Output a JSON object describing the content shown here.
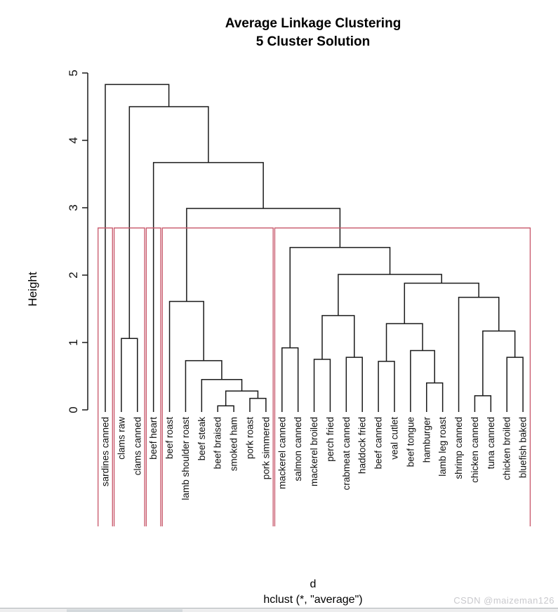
{
  "watermark": "CSDN @maizeman126",
  "chart_data": {
    "type": "dendrogram",
    "title": "Average Linkage Clustering",
    "subtitle": "5 Cluster Solution",
    "ylabel": "Height",
    "xlabel": "d",
    "caption": "hclust (*, \"average\")",
    "ylim": [
      0,
      5
    ],
    "y_ticks": [
      0,
      1,
      2,
      3,
      4,
      5
    ],
    "grid": false,
    "num_clusters": 5,
    "cluster_cut_height": 2.7,
    "cluster_box_color": "#c75568",
    "line_color": "#1a1a1a",
    "leaves": [
      "sardines canned",
      "clams raw",
      "clams canned",
      "beef heart",
      "beef roast",
      "lamb shoulder roast",
      "beef steak",
      "beef braised",
      "smoked ham",
      "pork roast",
      "pork simmered",
      "mackerel canned",
      "salmon canned",
      "mackerel broiled",
      "perch fried",
      "crabmeat canned",
      "haddock fried",
      "beef canned",
      "veal cutlet",
      "beef tongue",
      "hamburger",
      "lamb leg roast",
      "shrimp canned",
      "chicken canned",
      "tuna canned",
      "chicken broiled",
      "bluefish baked"
    ],
    "merges": [
      {
        "a": "L7",
        "b": "L8",
        "h": 0.06
      },
      {
        "a": "L9",
        "b": "L10",
        "h": 0.17
      },
      {
        "a": "N0",
        "b": "N1",
        "h": 0.28
      },
      {
        "a": "L6",
        "b": "N2",
        "h": 0.45
      },
      {
        "a": "L5",
        "b": "N3",
        "h": 0.73
      },
      {
        "a": "L4",
        "b": "N4",
        "h": 1.61
      },
      {
        "a": "L1",
        "b": "L2",
        "h": 1.06
      },
      {
        "a": "L11",
        "b": "L12",
        "h": 0.92
      },
      {
        "a": "L13",
        "b": "L14",
        "h": 0.75
      },
      {
        "a": "L15",
        "b": "L16",
        "h": 0.78
      },
      {
        "a": "N8",
        "b": "N9",
        "h": 1.4
      },
      {
        "a": "L17",
        "b": "L18",
        "h": 0.72
      },
      {
        "a": "L20",
        "b": "L21",
        "h": 0.4
      },
      {
        "a": "L19",
        "b": "N12",
        "h": 0.88
      },
      {
        "a": "N11",
        "b": "N13",
        "h": 1.28
      },
      {
        "a": "L23",
        "b": "L24",
        "h": 0.21
      },
      {
        "a": "L25",
        "b": "L26",
        "h": 0.78
      },
      {
        "a": "N15",
        "b": "N16",
        "h": 1.17
      },
      {
        "a": "L22",
        "b": "N17",
        "h": 1.67
      },
      {
        "a": "N14",
        "b": "N18",
        "h": 1.88
      },
      {
        "a": "N10",
        "b": "N19",
        "h": 2.01
      },
      {
        "a": "N7",
        "b": "N20",
        "h": 2.41
      },
      {
        "a": "N5",
        "b": "N21",
        "h": 2.99
      },
      {
        "a": "L3",
        "b": "N22",
        "h": 3.67
      },
      {
        "a": "N6",
        "b": "N23",
        "h": 4.5
      },
      {
        "a": "L0",
        "b": "N24",
        "h": 4.83
      }
    ],
    "clusters": [
      {
        "from": 0,
        "to": 0
      },
      {
        "from": 1,
        "to": 2
      },
      {
        "from": 3,
        "to": 3
      },
      {
        "from": 4,
        "to": 10
      },
      {
        "from": 11,
        "to": 26
      }
    ]
  }
}
